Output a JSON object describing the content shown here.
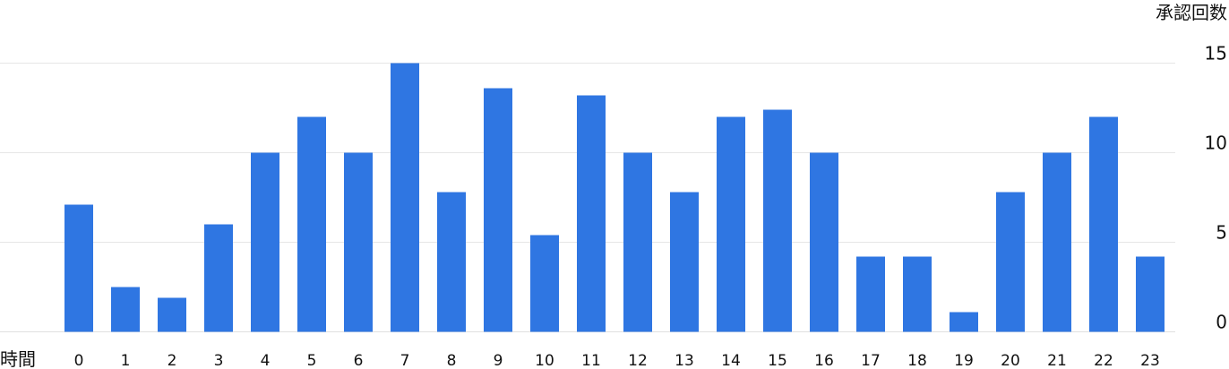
{
  "chart_data": {
    "type": "bar",
    "xlabel": "時間",
    "ylabel": "承認回数",
    "categories": [
      "0",
      "1",
      "2",
      "3",
      "4",
      "5",
      "6",
      "7",
      "8",
      "9",
      "10",
      "11",
      "12",
      "13",
      "14",
      "15",
      "16",
      "17",
      "18",
      "19",
      "20",
      "21",
      "22",
      "23"
    ],
    "values": [
      7.1,
      2.5,
      1.9,
      6.0,
      10.0,
      12.0,
      10.0,
      15.0,
      7.8,
      13.6,
      5.4,
      13.2,
      10.0,
      7.8,
      12.0,
      12.4,
      10.0,
      4.2,
      4.2,
      1.1,
      7.8,
      10.0,
      12.0,
      4.2
    ],
    "yticks": [
      0,
      5,
      10,
      15
    ],
    "ylim": [
      0,
      15
    ],
    "grid": true,
    "bar_color": "#2f76e2"
  }
}
